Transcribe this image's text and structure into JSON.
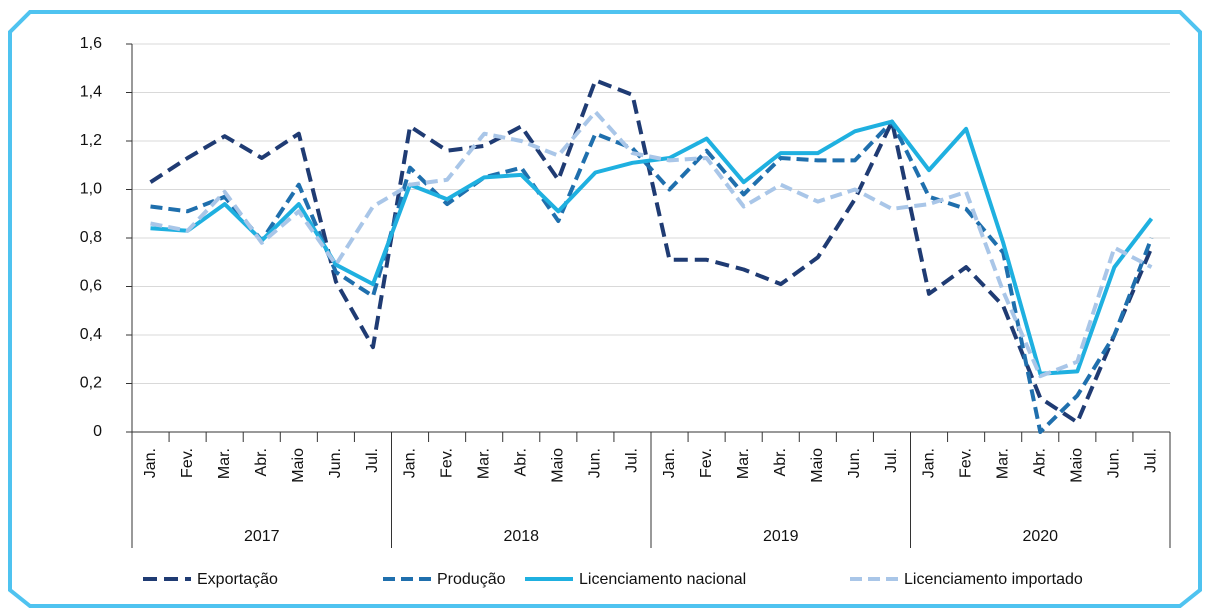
{
  "chart_data": {
    "type": "line",
    "categories": [
      "Jan.",
      "Fev.",
      "Mar.",
      "Abr.",
      "Maio",
      "Jun.",
      "Jul.",
      "Jan.",
      "Fev.",
      "Mar.",
      "Abr.",
      "Maio",
      "Jun.",
      "Jul.",
      "Jan.",
      "Fev.",
      "Mar.",
      "Abr.",
      "Maio",
      "Jun.",
      "Jul.",
      "Jan.",
      "Fev.",
      "Mar.",
      "Abr.",
      "Maio",
      "Jun.",
      "Jul."
    ],
    "groups": [
      "2017",
      "2018",
      "2019",
      "2020"
    ],
    "series": [
      {
        "name": "Exportação",
        "color": "#1f3b73",
        "dash": "14 7",
        "values": [
          1.03,
          1.13,
          1.22,
          1.13,
          1.23,
          0.62,
          0.35,
          1.26,
          1.16,
          1.18,
          1.26,
          1.04,
          1.45,
          1.39,
          0.71,
          0.71,
          0.67,
          0.61,
          0.72,
          0.96,
          1.28,
          0.57,
          0.68,
          0.52,
          0.14,
          0.04,
          0.4,
          0.76
        ]
      },
      {
        "name": "Produção",
        "color": "#1f6fad",
        "dash": "12 6",
        "values": [
          0.93,
          0.91,
          0.97,
          0.79,
          1.02,
          0.66,
          0.56,
          1.09,
          0.94,
          1.05,
          1.09,
          0.87,
          1.23,
          1.17,
          1.0,
          1.16,
          0.98,
          1.13,
          1.12,
          1.12,
          1.28,
          0.97,
          0.92,
          0.74,
          0.0,
          0.15,
          0.4,
          0.8
        ]
      },
      {
        "name": "Licenciamento nacional",
        "color": "#1fb0e0",
        "dash": "none",
        "values": [
          0.84,
          0.83,
          0.94,
          0.79,
          0.94,
          0.69,
          0.61,
          1.02,
          0.96,
          1.05,
          1.06,
          0.91,
          1.07,
          1.11,
          1.13,
          1.21,
          1.03,
          1.15,
          1.15,
          1.24,
          1.28,
          1.08,
          1.25,
          0.78,
          0.24,
          0.25,
          0.68,
          0.88
        ]
      },
      {
        "name": "Licenciamento importado",
        "color": "#a9c6e8",
        "dash": "12 6",
        "values": [
          0.86,
          0.83,
          0.99,
          0.78,
          0.91,
          0.69,
          0.93,
          1.02,
          1.04,
          1.23,
          1.2,
          1.14,
          1.32,
          1.15,
          1.12,
          1.13,
          0.93,
          1.02,
          0.95,
          1.0,
          0.92,
          0.94,
          0.99,
          0.58,
          0.23,
          0.29,
          0.76,
          0.68
        ]
      }
    ],
    "ylim": [
      0,
      1.6
    ],
    "yticks": [
      0,
      {
        "value": 0.2,
        "label": "0,2"
      },
      {
        "value": 0.4,
        "label": "0,4"
      },
      {
        "value": 0.6,
        "label": "0,6"
      },
      {
        "value": 0.8,
        "label": "0,8"
      },
      {
        "value": 1.0,
        "label": "1,0"
      },
      {
        "value": 1.2,
        "label": "1,2"
      },
      {
        "value": 1.4,
        "label": "1,4"
      },
      {
        "value": 1.6,
        "label": "1,6"
      }
    ],
    "grid": true
  }
}
